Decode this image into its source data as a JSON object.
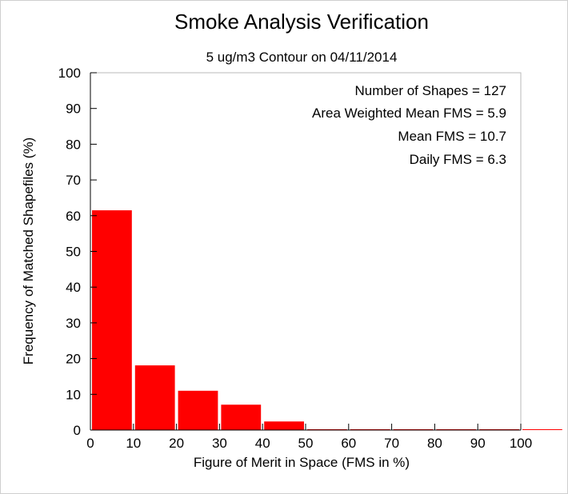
{
  "chart_data": {
    "type": "bar",
    "title": "Smoke Analysis Verification",
    "subtitle": "5 ug/m3 Contour on 04/11/2014",
    "xlabel": "Figure of Merit in Space (FMS in %)",
    "ylabel": "Frequency of Matched Shapefiles (%)",
    "xlim": [
      0,
      100
    ],
    "ylim": [
      0,
      100
    ],
    "xticks": [
      "0",
      "10",
      "20",
      "30",
      "40",
      "50",
      "60",
      "70",
      "80",
      "90",
      "100"
    ],
    "yticks": [
      "0",
      "10",
      "20",
      "30",
      "40",
      "50",
      "60",
      "70",
      "80",
      "90",
      "100"
    ],
    "bins": [
      {
        "start": 0,
        "end": 10,
        "value": 61.5
      },
      {
        "start": 10,
        "end": 20,
        "value": 18.1
      },
      {
        "start": 20,
        "end": 30,
        "value": 11.0
      },
      {
        "start": 30,
        "end": 40,
        "value": 7.1
      },
      {
        "start": 40,
        "end": 50,
        "value": 2.4
      },
      {
        "start": 50,
        "end": 60,
        "value": 0
      },
      {
        "start": 60,
        "end": 70,
        "value": 0
      },
      {
        "start": 70,
        "end": 80,
        "value": 0
      },
      {
        "start": 80,
        "end": 90,
        "value": 0
      },
      {
        "start": 90,
        "end": 100,
        "value": 0
      },
      {
        "start": 100,
        "end": 110,
        "value": 0
      }
    ],
    "annotations": [
      "Number of Shapes = 127",
      "Area Weighted Mean FMS = 5.9",
      "Mean FMS = 10.7",
      "Daily FMS = 6.3"
    ],
    "bar_color": "#ff0000",
    "grid": false,
    "legend": "none"
  }
}
